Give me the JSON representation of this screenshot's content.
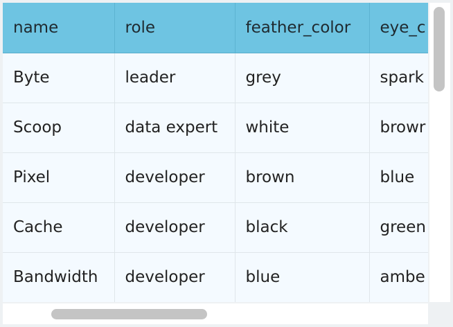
{
  "table": {
    "columns": [
      "name",
      "role",
      "feather_color",
      "eye_c"
    ],
    "rows": [
      [
        "Byte",
        "leader",
        "grey",
        "spark"
      ],
      [
        "Scoop",
        "data expert",
        "white",
        "browr"
      ],
      [
        "Pixel",
        "developer",
        "brown",
        "blue"
      ],
      [
        "Cache",
        "developer",
        "black",
        "green"
      ],
      [
        "Bandwidth",
        "developer",
        "blue",
        "ambe"
      ]
    ]
  },
  "colors": {
    "header_background": "#6ec4e2",
    "cell_background": "#f4faff",
    "scrollbar_thumb": "#c4c4c4"
  }
}
